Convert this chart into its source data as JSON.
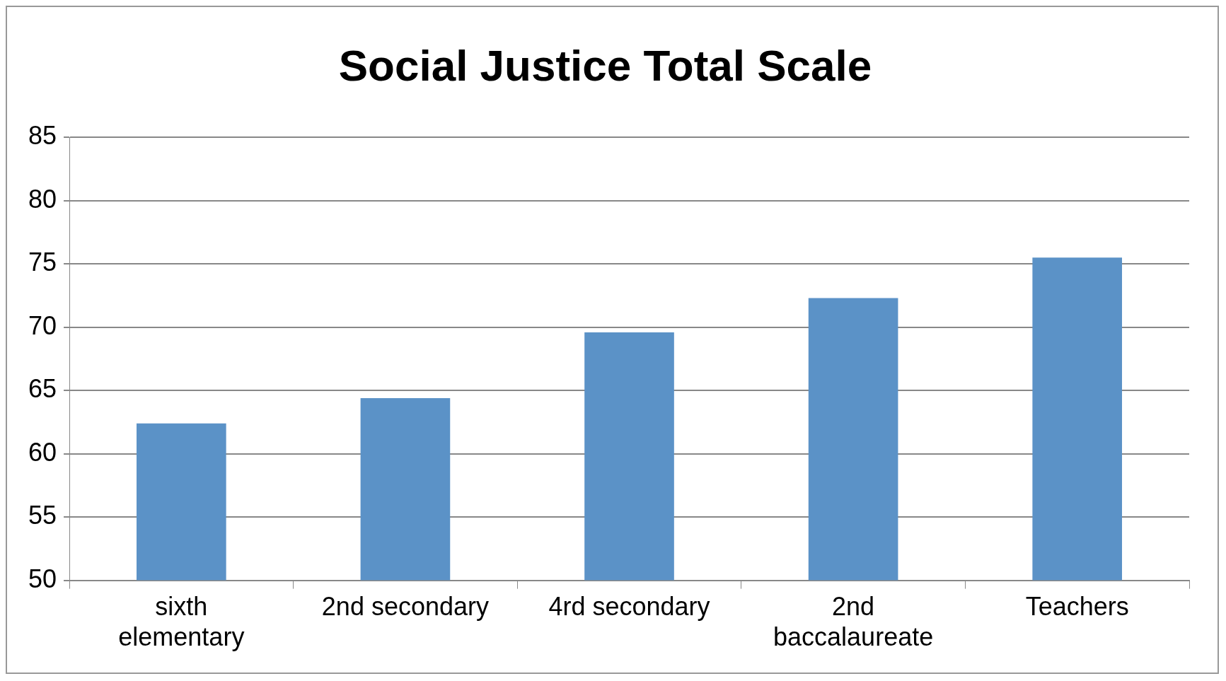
{
  "chart_data": {
    "type": "bar",
    "title": "Social Justice Total Scale",
    "categories": [
      "sixth elementary",
      "2nd secondary",
      "4rd secondary",
      "2nd baccalaureate",
      "Teachers"
    ],
    "values": [
      62.4,
      64.4,
      69.6,
      72.3,
      75.5
    ],
    "color": "#5b92c7",
    "ylim": [
      50,
      85
    ],
    "yticks": [
      50,
      55,
      60,
      65,
      70,
      75,
      80,
      85
    ],
    "grid": "y",
    "legend": false
  }
}
